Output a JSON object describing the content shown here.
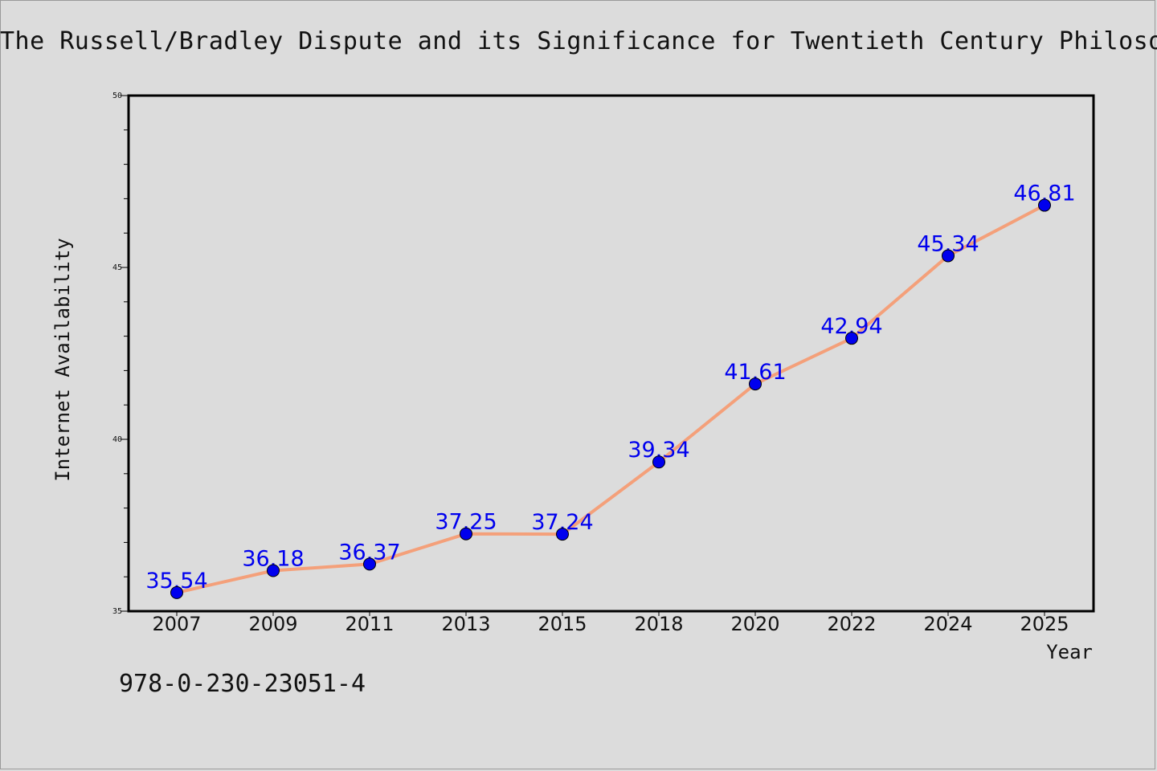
{
  "chart_data": {
    "type": "line",
    "title": "The Russell/Bradley Dispute and its Significance for Twentieth Century Philosophy",
    "xlabel": "Year",
    "ylabel": "Internet Availability",
    "categories": [
      "2007",
      "2009",
      "2011",
      "2013",
      "2015",
      "2018",
      "2020",
      "2022",
      "2024",
      "2025"
    ],
    "series": [
      {
        "values": [
          35.54,
          36.18,
          36.37,
          37.25,
          37.24,
          39.34,
          41.61,
          42.94,
          45.34,
          46.81
        ],
        "data_labels": [
          "35.54",
          "36.18",
          "36.37",
          "37.25",
          "37.24",
          "39.34",
          "41.61",
          "42.94",
          "45.34",
          "46.81"
        ]
      }
    ],
    "ylim": [
      35,
      50
    ],
    "yticks": [
      "35",
      "40",
      "45",
      "50"
    ],
    "line_color": "#f4a07a",
    "marker_color": "#0000ee",
    "label_color": "#0000ee",
    "grid": false,
    "legend": "none"
  },
  "footer": {
    "isbn": "978-0-230-23051-4"
  }
}
